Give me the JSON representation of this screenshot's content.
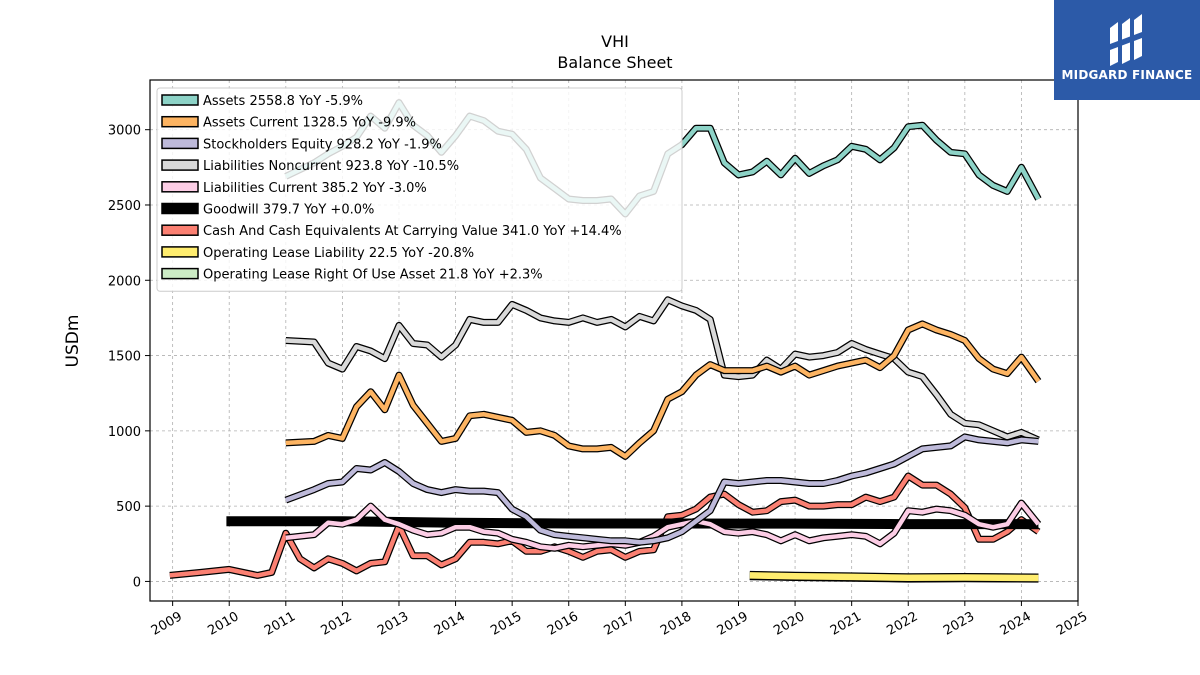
{
  "brand": {
    "name": "MIDGARD FINANCE",
    "logo_icon": "midgard-logo-icon"
  },
  "chart_data": {
    "type": "line",
    "title": "VHI",
    "subtitle": "Balance  Sheet",
    "ylabel": "USDm",
    "xlabel": "",
    "xlim": [
      2008.6,
      2025.0
    ],
    "ylim": [
      -130,
      3330
    ],
    "x_ticks": [
      "2009",
      "2010",
      "2011",
      "2012",
      "2013",
      "2014",
      "2015",
      "2016",
      "2017",
      "2018",
      "2019",
      "2020",
      "2021",
      "2022",
      "2023",
      "2024",
      "2025"
    ],
    "y_ticks": [
      0,
      500,
      1000,
      1500,
      2000,
      2500,
      3000
    ],
    "grid": true,
    "legend_position": "top-left",
    "series": [
      {
        "name": "Assets  2558.8 YoY -5.9%",
        "color": "#8dd3c7",
        "x": [
          2011.0,
          2011.5,
          2011.75,
          2012.0,
          2012.25,
          2012.5,
          2012.75,
          2013.0,
          2013.25,
          2013.5,
          2013.75,
          2014.0,
          2014.25,
          2014.5,
          2014.75,
          2015.0,
          2015.25,
          2015.5,
          2015.75,
          2016.0,
          2016.25,
          2016.5,
          2016.75,
          2017.0,
          2017.25,
          2017.5,
          2017.75,
          2018.0,
          2018.25,
          2018.5,
          2018.75,
          2019.0,
          2019.25,
          2019.5,
          2019.75,
          2020.0,
          2020.25,
          2020.5,
          2020.75,
          2021.0,
          2021.25,
          2021.5,
          2021.75,
          2022.0,
          2022.25,
          2022.5,
          2022.75,
          2023.0,
          2023.25,
          2023.5,
          2023.75,
          2024.0,
          2024.3
        ],
        "y": [
          2690,
          2780,
          2840,
          2890,
          2950,
          3090,
          3010,
          3180,
          3030,
          2960,
          2850,
          2960,
          3090,
          3060,
          2990,
          2970,
          2870,
          2680,
          2610,
          2540,
          2530,
          2530,
          2540,
          2440,
          2560,
          2590,
          2840,
          2900,
          3010,
          3010,
          2780,
          2700,
          2720,
          2790,
          2700,
          2810,
          2710,
          2760,
          2800,
          2890,
          2870,
          2800,
          2880,
          3020,
          3030,
          2930,
          2850,
          2840,
          2700,
          2630,
          2590,
          2750,
          2540
        ]
      },
      {
        "name": "Assets Current  1328.5 YoY -9.9%",
        "color": "#fdb462",
        "x": [
          2011.0,
          2011.5,
          2011.75,
          2012.0,
          2012.25,
          2012.5,
          2012.75,
          2013.0,
          2013.25,
          2013.5,
          2013.75,
          2014.0,
          2014.25,
          2014.5,
          2014.75,
          2015.0,
          2015.25,
          2015.5,
          2015.75,
          2016.0,
          2016.25,
          2016.5,
          2016.75,
          2017.0,
          2017.25,
          2017.5,
          2017.75,
          2018.0,
          2018.25,
          2018.5,
          2018.75,
          2019.0,
          2019.25,
          2019.5,
          2019.75,
          2020.0,
          2020.25,
          2020.5,
          2020.75,
          2021.0,
          2021.25,
          2021.5,
          2021.75,
          2022.0,
          2022.25,
          2022.5,
          2022.75,
          2023.0,
          2023.25,
          2023.5,
          2023.75,
          2024.0,
          2024.3
        ],
        "y": [
          920,
          930,
          970,
          950,
          1160,
          1260,
          1140,
          1370,
          1170,
          1050,
          930,
          950,
          1100,
          1110,
          1090,
          1070,
          990,
          1000,
          970,
          900,
          880,
          880,
          890,
          830,
          920,
          1000,
          1210,
          1260,
          1370,
          1440,
          1400,
          1400,
          1400,
          1430,
          1390,
          1430,
          1370,
          1400,
          1430,
          1450,
          1470,
          1420,
          1500,
          1670,
          1710,
          1670,
          1640,
          1600,
          1480,
          1410,
          1380,
          1490,
          1330
        ]
      },
      {
        "name": "Stockholders Equity  928.2 YoY -1.9%",
        "color": "#bebada",
        "x": [
          2011.0,
          2011.5,
          2011.75,
          2012.0,
          2012.25,
          2012.5,
          2012.75,
          2013.0,
          2013.25,
          2013.5,
          2013.75,
          2014.0,
          2014.25,
          2014.5,
          2014.75,
          2015.0,
          2015.25,
          2015.5,
          2015.75,
          2016.0,
          2016.25,
          2016.5,
          2016.75,
          2017.0,
          2017.25,
          2017.5,
          2017.75,
          2018.0,
          2018.25,
          2018.5,
          2018.75,
          2019.0,
          2019.25,
          2019.5,
          2019.75,
          2020.0,
          2020.25,
          2020.5,
          2020.75,
          2021.0,
          2021.25,
          2021.5,
          2021.75,
          2022.0,
          2022.25,
          2022.5,
          2022.75,
          2023.0,
          2023.25,
          2023.5,
          2023.75,
          2024.0,
          2024.3
        ],
        "y": [
          540,
          610,
          650,
          660,
          750,
          740,
          790,
          730,
          650,
          610,
          590,
          610,
          600,
          600,
          590,
          480,
          430,
          340,
          310,
          300,
          290,
          280,
          270,
          270,
          260,
          270,
          290,
          330,
          400,
          470,
          660,
          650,
          660,
          670,
          670,
          660,
          650,
          650,
          670,
          700,
          720,
          750,
          780,
          830,
          880,
          890,
          900,
          960,
          940,
          930,
          920,
          940,
          930
        ]
      },
      {
        "name": "Liabilities Noncurrent  923.8 YoY -10.5%",
        "color": "#d9d9d9",
        "x": [
          2011.0,
          2011.5,
          2011.75,
          2012.0,
          2012.25,
          2012.5,
          2012.75,
          2013.0,
          2013.25,
          2013.5,
          2013.75,
          2014.0,
          2014.25,
          2014.5,
          2014.75,
          2015.0,
          2015.25,
          2015.5,
          2015.75,
          2016.0,
          2016.25,
          2016.5,
          2016.75,
          2017.0,
          2017.25,
          2017.5,
          2017.75,
          2018.0,
          2018.25,
          2018.5,
          2018.75,
          2019.0,
          2019.25,
          2019.5,
          2019.75,
          2020.0,
          2020.25,
          2020.5,
          2020.75,
          2021.0,
          2021.25,
          2021.5,
          2021.75,
          2022.0,
          2022.25,
          2022.5,
          2022.75,
          2023.0,
          2023.25,
          2023.5,
          2023.75,
          2024.0,
          2024.3
        ],
        "y": [
          1600,
          1590,
          1450,
          1410,
          1560,
          1530,
          1480,
          1700,
          1580,
          1570,
          1490,
          1570,
          1740,
          1720,
          1720,
          1840,
          1800,
          1750,
          1730,
          1720,
          1750,
          1720,
          1740,
          1690,
          1760,
          1730,
          1870,
          1830,
          1800,
          1740,
          1370,
          1360,
          1370,
          1470,
          1410,
          1510,
          1490,
          1500,
          1520,
          1580,
          1540,
          1510,
          1480,
          1390,
          1360,
          1240,
          1110,
          1050,
          1040,
          1000,
          960,
          990,
          940
        ]
      },
      {
        "name": "Liabilities Current  385.2 YoY -3.0%",
        "color": "#fccde5",
        "x": [
          2011.0,
          2011.5,
          2011.75,
          2012.0,
          2012.25,
          2012.5,
          2012.75,
          2013.0,
          2013.25,
          2013.5,
          2013.75,
          2014.0,
          2014.25,
          2014.5,
          2014.75,
          2015.0,
          2015.25,
          2015.5,
          2015.75,
          2016.0,
          2016.25,
          2016.5,
          2016.75,
          2017.0,
          2017.25,
          2017.5,
          2017.75,
          2018.0,
          2018.25,
          2018.5,
          2018.75,
          2019.0,
          2019.25,
          2019.5,
          2019.75,
          2020.0,
          2020.25,
          2020.5,
          2020.75,
          2021.0,
          2021.25,
          2021.5,
          2021.75,
          2022.0,
          2022.25,
          2022.5,
          2022.75,
          2023.0,
          2023.25,
          2023.5,
          2023.75,
          2024.0,
          2024.3
        ],
        "y": [
          290,
          310,
          390,
          380,
          410,
          500,
          410,
          380,
          340,
          310,
          320,
          360,
          360,
          330,
          320,
          280,
          260,
          230,
          220,
          240,
          230,
          240,
          250,
          240,
          260,
          300,
          360,
          380,
          400,
          380,
          330,
          320,
          330,
          310,
          270,
          310,
          270,
          290,
          300,
          310,
          300,
          250,
          320,
          470,
          460,
          480,
          470,
          440,
          380,
          360,
          380,
          520,
          380
        ]
      },
      {
        "name": "Goodwill  379.7 YoY +0.0%",
        "color": "#000000",
        "x": [
          2009.95,
          2012.0,
          2014.0,
          2016.0,
          2018.0,
          2020.0,
          2022.0,
          2024.3
        ],
        "y": [
          400,
          400,
          390,
          385,
          385,
          384,
          381,
          380
        ]
      },
      {
        "name": "Cash And Cash Equivalents At Carrying Value  341.0 YoY +14.4%",
        "color": "#fb8072",
        "x": [
          2008.95,
          2009.5,
          2010.0,
          2010.25,
          2010.5,
          2010.75,
          2011.0,
          2011.25,
          2011.5,
          2011.75,
          2012.0,
          2012.25,
          2012.5,
          2012.75,
          2013.0,
          2013.25,
          2013.5,
          2013.75,
          2014.0,
          2014.25,
          2014.5,
          2014.75,
          2015.0,
          2015.25,
          2015.5,
          2015.75,
          2016.0,
          2016.25,
          2016.5,
          2016.75,
          2017.0,
          2017.25,
          2017.5,
          2017.75,
          2018.0,
          2018.25,
          2018.5,
          2018.75,
          2019.0,
          2019.25,
          2019.5,
          2019.75,
          2020.0,
          2020.25,
          2020.5,
          2020.75,
          2021.0,
          2021.25,
          2021.5,
          2021.75,
          2022.0,
          2022.25,
          2022.5,
          2022.75,
          2023.0,
          2023.25,
          2023.5,
          2023.75,
          2024.0,
          2024.3
        ],
        "y": [
          40,
          60,
          80,
          60,
          40,
          60,
          320,
          150,
          90,
          150,
          120,
          70,
          120,
          130,
          370,
          170,
          170,
          110,
          150,
          260,
          260,
          250,
          270,
          200,
          200,
          230,
          200,
          160,
          200,
          210,
          160,
          200,
          210,
          430,
          440,
          480,
          560,
          580,
          510,
          460,
          470,
          530,
          540,
          500,
          500,
          510,
          510,
          560,
          530,
          560,
          700,
          640,
          640,
          580,
          490,
          280,
          280,
          330,
          410,
          330
        ]
      },
      {
        "name": "Operating Lease Liability  22.5 YoY -20.8%",
        "color": "#ffed6f",
        "x": [
          2019.2,
          2020.0,
          2021.0,
          2022.0,
          2023.0,
          2024.3
        ],
        "y": [
          40,
          35,
          30,
          24,
          26,
          23
        ]
      },
      {
        "name": "Operating Lease Right Of Use Asset  21.8 YoY +2.3%",
        "color": "#ccebc5",
        "x": [
          2019.2,
          2020.0,
          2021.0,
          2022.0,
          2023.0,
          2024.3
        ],
        "y": [
          38,
          33,
          28,
          22,
          24,
          22
        ]
      }
    ]
  }
}
